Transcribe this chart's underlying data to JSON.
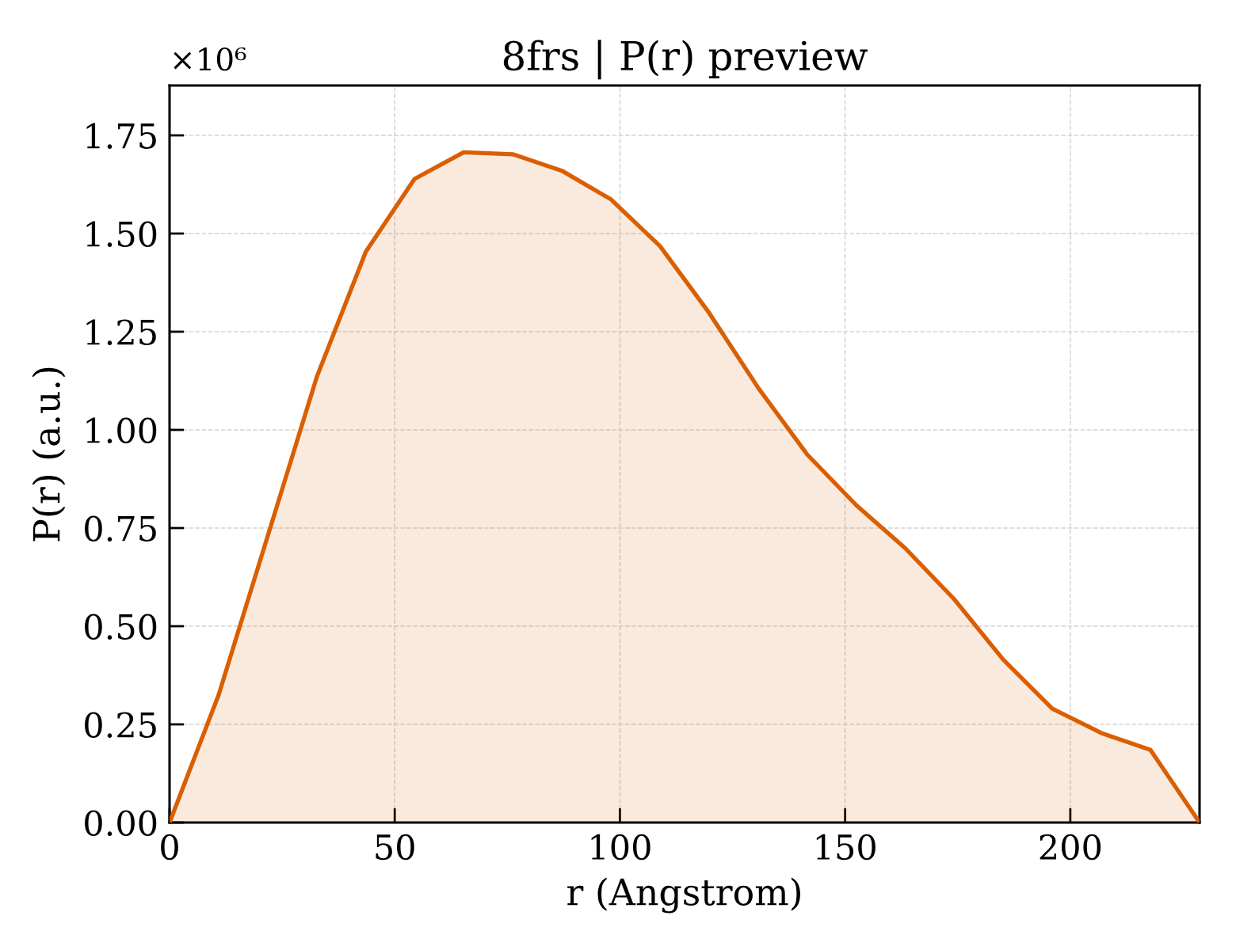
{
  "chart_data": {
    "type": "area",
    "title": "8frs | P(r) preview",
    "xlabel": "r (Angstrom)",
    "ylabel": "P(r) (a.u.)",
    "annotations": [
      "×10⁶"
    ],
    "x": [
      0,
      10.9,
      21.8,
      32.7,
      43.6,
      54.4,
      65.3,
      76.2,
      87.1,
      98.0,
      108.9,
      119.8,
      130.7,
      141.6,
      152.5,
      163.3,
      174.2,
      185.1,
      196.0,
      206.9,
      217.8,
      228.7
    ],
    "series": [
      {
        "color": "#d95f02",
        "values": [
          0,
          0.325,
          0.73,
          1.135,
          1.454,
          1.639,
          1.707,
          1.702,
          1.66,
          1.587,
          1.468,
          1.298,
          1.107,
          0.937,
          0.808,
          0.699,
          0.569,
          0.415,
          0.29,
          0.228,
          0.185,
          0
        ]
      }
    ],
    "xlim": [
      0,
      228.7
    ],
    "xticks": [
      0,
      50,
      100,
      150,
      200
    ],
    "ylim": [
      0,
      1.877
    ],
    "yticks": [
      {
        "value": 0,
        "label": "0.00"
      },
      0.25,
      {
        "value": 0.5,
        "label": "0.50"
      },
      0.75,
      {
        "value": 1,
        "label": "1.00"
      },
      1.25,
      {
        "value": 1.5,
        "label": "1.50"
      },
      1.75
    ],
    "grid": true,
    "line_style": "solid",
    "marker": "none"
  }
}
